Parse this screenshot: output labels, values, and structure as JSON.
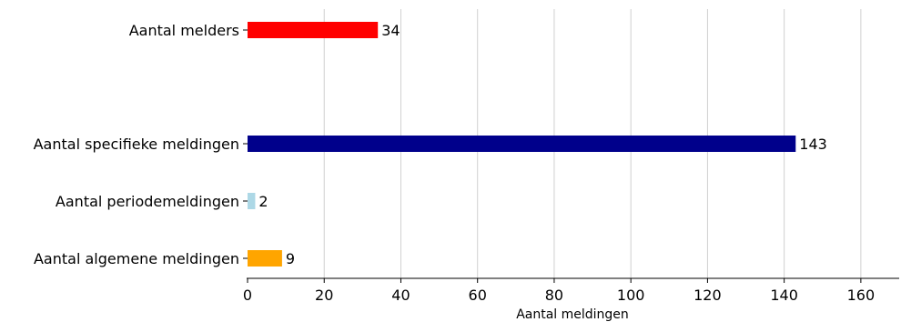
{
  "chart_data": {
    "type": "bar",
    "orientation": "horizontal",
    "xlabel": "Aantal meldingen",
    "xlim": [
      0,
      170
    ],
    "xticks": [
      0,
      20,
      40,
      60,
      80,
      100,
      120,
      140,
      160
    ],
    "grid": "vertical",
    "categories": [
      {
        "label": "Aantal melders",
        "value": 34,
        "color": "#ff0000"
      },
      {
        "label": "Aantal specifieke meldingen",
        "value": 143,
        "color": "#00008b"
      },
      {
        "label": "Aantal periodemeldingen",
        "value": 2,
        "color": "#add8e6"
      },
      {
        "label": "Aantal algemene meldingen",
        "value": 9,
        "color": "#ffa500"
      }
    ]
  }
}
